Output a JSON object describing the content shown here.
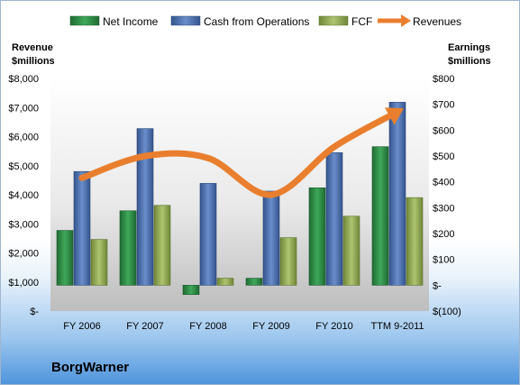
{
  "company": "BorgWarner",
  "colors": {
    "net_income": "#2e8b45",
    "cash_from_operations": "#4a6fae",
    "fcf": "#8fa84d",
    "revenues": "#e97f2e"
  },
  "chart_data": {
    "type": "bar",
    "categories": [
      "FY 2006",
      "FY 2007",
      "FY 2008",
      "FY 2009",
      "FY 2010",
      "TTM 9-2011"
    ],
    "series": [
      {
        "name": "Net Income",
        "axis": "right",
        "values": [
          212,
          288,
          -36,
          27,
          377,
          536
        ]
      },
      {
        "name": "Cash from Operations",
        "axis": "right",
        "values": [
          440,
          606,
          394,
          364,
          513,
          708
        ]
      },
      {
        "name": "FCF",
        "axis": "right",
        "values": [
          177,
          309,
          27,
          184,
          267,
          339
        ]
      },
      {
        "name": "Revenues",
        "type": "line",
        "axis": "left",
        "values": [
          4580,
          5330,
          5260,
          4000,
          5650,
          6850
        ]
      }
    ],
    "left_axis": {
      "title_lines": [
        "Revenue",
        "$millions"
      ],
      "ylim": [
        0,
        8000
      ],
      "ticks": [
        0,
        1000,
        2000,
        3000,
        4000,
        5000,
        6000,
        7000,
        8000
      ],
      "tick_labels": [
        "$-",
        "$1,000",
        "$2,000",
        "$3,000",
        "$4,000",
        "$5,000",
        "$6,000",
        "$7,000",
        "$8,000"
      ]
    },
    "right_axis": {
      "title_lines": [
        "Earnings",
        "$millions"
      ],
      "ylim": [
        -100,
        800
      ],
      "ticks": [
        -100,
        0,
        100,
        200,
        300,
        400,
        500,
        600,
        700,
        800
      ],
      "tick_labels": [
        "$(100)",
        "$-",
        "$100",
        "$200",
        "$300",
        "$400",
        "$500",
        "$600",
        "$700",
        "$800"
      ]
    },
    "legend": [
      "Net Income",
      "Cash from Operations",
      "FCF",
      "Revenues"
    ],
    "legend_position": "top",
    "grid": false
  }
}
